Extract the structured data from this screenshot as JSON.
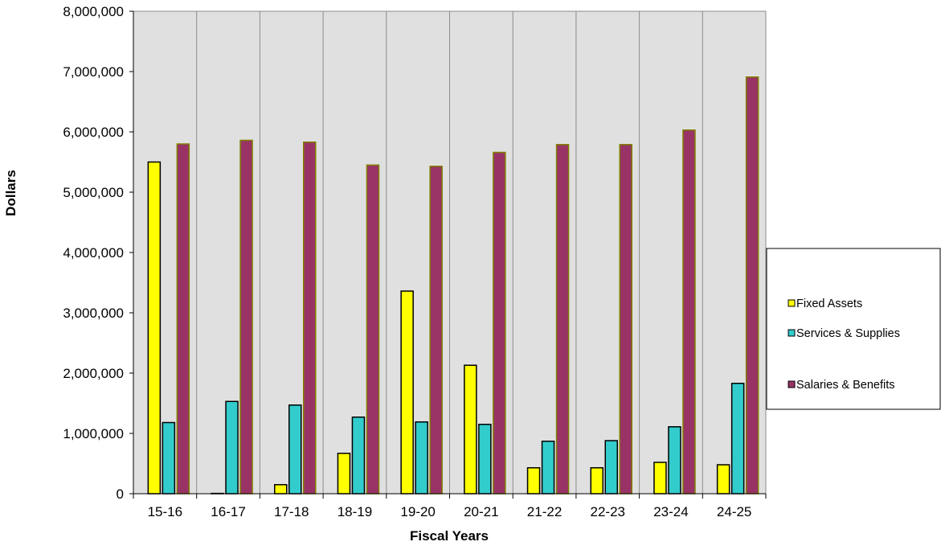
{
  "chart_data": {
    "type": "bar",
    "title": "",
    "xlabel": "Fiscal Years",
    "ylabel": "Dollars",
    "ylim": [
      0,
      8000000
    ],
    "yticks": [
      0,
      1000000,
      2000000,
      3000000,
      4000000,
      5000000,
      6000000,
      7000000,
      8000000
    ],
    "ytick_labels": [
      "0",
      "1,000,000",
      "2,000,000",
      "3,000,000",
      "4,000,000",
      "5,000,000",
      "6,000,000",
      "7,000,000",
      "8,000,000"
    ],
    "categories": [
      "15-16",
      "16-17",
      "17-18",
      "18-19",
      "19-20",
      "20-21",
      "21-22",
      "22-23",
      "23-24",
      "24-25"
    ],
    "series": [
      {
        "name": "Fixed Assets",
        "color": "#FFFF00",
        "values": [
          5500000,
          5000,
          150000,
          670000,
          3360000,
          2130000,
          430000,
          430000,
          520000,
          480000
        ]
      },
      {
        "name": "Services & Supplies",
        "color": "#33CCCC",
        "values": [
          1180000,
          1530000,
          1470000,
          1270000,
          1190000,
          1150000,
          870000,
          880000,
          1110000,
          1830000
        ]
      },
      {
        "name": "Salaries & Benefits",
        "color": "#993366",
        "values": [
          5800000,
          5860000,
          5830000,
          5450000,
          5430000,
          5660000,
          5790000,
          5790000,
          6030000,
          6910000
        ]
      }
    ],
    "grid": "vertical category dividers",
    "plot_background": "#E0E0E0",
    "legend_position": "right"
  }
}
